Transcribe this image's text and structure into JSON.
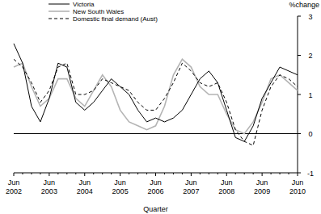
{
  "chart_data": {
    "type": "line",
    "y_label": "%change",
    "x_label": "Quarter",
    "categories": [
      "Jun 2002",
      null,
      null,
      null,
      "Jun 2003",
      null,
      null,
      null,
      "Jun 2004",
      null,
      null,
      null,
      "Jun 2005",
      null,
      null,
      null,
      "Jun 2006",
      null,
      null,
      null,
      "Jun 2007",
      null,
      null,
      null,
      "Jun 2008",
      null,
      null,
      null,
      "Jun 2009",
      null,
      null,
      null,
      "Jun 2010"
    ],
    "series": [
      {
        "name": "Victoria",
        "color": "#000000",
        "line_style": "solid",
        "values": [
          2.3,
          1.8,
          0.7,
          0.3,
          0.9,
          1.8,
          1.7,
          0.8,
          0.6,
          0.8,
          1.1,
          1.4,
          1.2,
          1.0,
          0.6,
          0.3,
          0.4,
          0.3,
          0.4,
          0.6,
          1.0,
          1.4,
          1.6,
          1.3,
          0.6,
          -0.1,
          -0.2,
          0.2,
          0.9,
          1.3,
          1.7,
          1.6,
          1.5
        ]
      },
      {
        "name": "New South Wales",
        "color": "#b4b4b4",
        "line_style": "solid",
        "values": [
          1.7,
          1.8,
          1.2,
          0.7,
          0.9,
          1.4,
          1.4,
          0.9,
          0.7,
          1.1,
          1.5,
          1.2,
          0.6,
          0.3,
          0.2,
          0.1,
          0.2,
          0.7,
          1.5,
          1.9,
          1.7,
          1.2,
          1.0,
          1.0,
          0.5,
          0.1,
          0.0,
          0.3,
          0.8,
          1.4,
          1.5,
          1.3,
          1.1
        ]
      },
      {
        "name": "Domestic final demand (Aust)",
        "color": "#000000",
        "line_style": "dashed",
        "values": [
          1.9,
          1.7,
          1.3,
          0.8,
          1.1,
          1.7,
          1.8,
          1.0,
          1.0,
          1.1,
          1.4,
          1.3,
          1.2,
          1.1,
          0.8,
          0.6,
          0.6,
          0.9,
          1.3,
          1.8,
          1.6,
          1.3,
          1.2,
          1.3,
          0.8,
          0.1,
          -0.2,
          -0.3,
          0.6,
          1.2,
          1.5,
          1.4,
          1.2
        ]
      }
    ],
    "ylim": [
      -1,
      3
    ],
    "yticks": [
      -1,
      0,
      1,
      2,
      3
    ],
    "legend": "top",
    "grid": false
  }
}
